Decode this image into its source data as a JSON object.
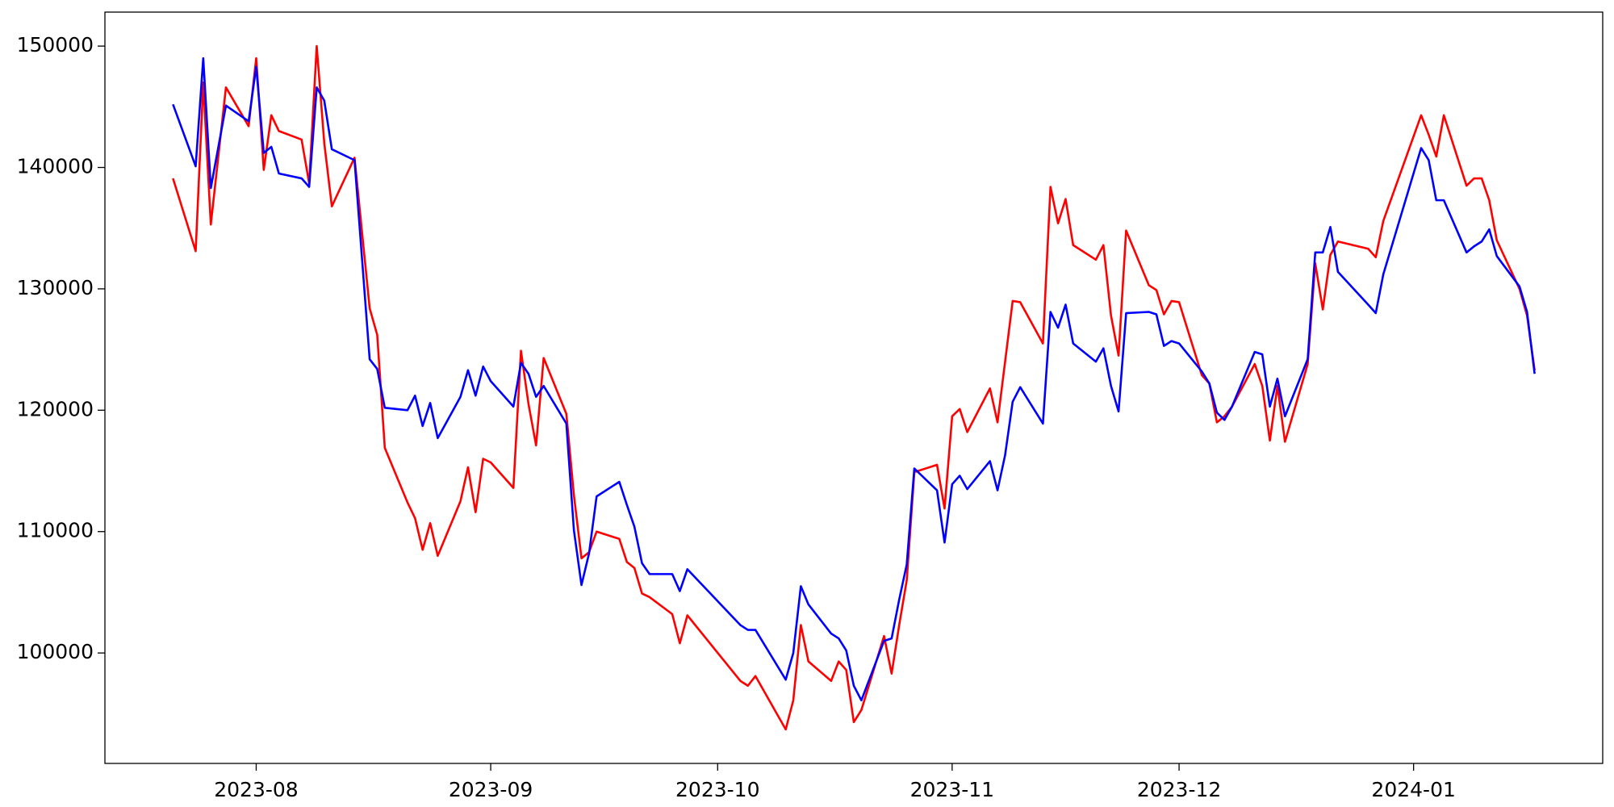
{
  "chart_data": {
    "type": "line",
    "x": [
      19559,
      19562,
      19563,
      19564,
      19566,
      19569,
      19570,
      19571,
      19572,
      19573,
      19576,
      19577,
      19578,
      19579,
      19580,
      19583,
      19585,
      19586,
      19587,
      19590,
      19591,
      19592,
      19593,
      19594,
      19597,
      19598,
      19599,
      19600,
      19601,
      19604,
      19605,
      19606,
      19607,
      19608,
      19611,
      19612,
      19613,
      19614,
      19615,
      19618,
      19619,
      19620,
      19621,
      19622,
      19625,
      19626,
      19627,
      19634,
      19635,
      19636,
      19640,
      19641,
      19642,
      19643,
      19646,
      19647,
      19648,
      19649,
      19650,
      19653,
      19654,
      19655,
      19656,
      19657,
      19660,
      19661,
      19662,
      19663,
      19664,
      19667,
      19668,
      19669,
      19670,
      19671,
      19674,
      19675,
      19676,
      19677,
      19678,
      19681,
      19682,
      19683,
      19684,
      19685,
      19688,
      19689,
      19690,
      19691,
      19692,
      19695,
      19696,
      19697,
      19698,
      19699,
      19702,
      19703,
      19704,
      19705,
      19706,
      19709,
      19710,
      19711,
      19712,
      19713,
      19717,
      19718,
      19719,
      19724,
      19725,
      19726,
      19727,
      19730,
      19731,
      19732,
      19733,
      19734,
      19737,
      19738,
      19739
    ],
    "series": [
      {
        "color": "#ff0000",
        "values": [
          139100,
          133100,
          147000,
          135300,
          146600,
          143400,
          149000,
          139800,
          144300,
          143000,
          142300,
          138700,
          150000,
          142000,
          136800,
          140800,
          128400,
          126200,
          116900,
          112400,
          111100,
          108500,
          110700,
          108000,
          112500,
          115300,
          111600,
          116000,
          115700,
          113600,
          124900,
          120500,
          117100,
          124300,
          119700,
          113000,
          107800,
          108300,
          110000,
          109400,
          107500,
          107000,
          104900,
          104600,
          103200,
          100800,
          103100,
          97700,
          97300,
          98100,
          93700,
          96100,
          102300,
          99300,
          97700,
          99300,
          98600,
          94300,
          95300,
          101400,
          98300,
          102300,
          106000,
          114900,
          115500,
          111900,
          119500,
          120100,
          118200,
          121800,
          119000,
          124000,
          129000,
          128900,
          125500,
          138400,
          135400,
          137400,
          133600,
          132400,
          133600,
          127800,
          124500,
          134800,
          130300,
          129900,
          127900,
          129000,
          128900,
          122900,
          122200,
          119000,
          119500,
          120300,
          123800,
          122000,
          117500,
          122000,
          117400,
          123800,
          132100,
          128300,
          132800,
          133900,
          133300,
          132600,
          135600,
          144300,
          142700,
          140900,
          144300,
          138500,
          139100,
          139100,
          137300,
          134000,
          130000,
          127800,
          123300
        ]
      },
      {
        "color": "#0000ff",
        "values": [
          145200,
          140100,
          149000,
          138300,
          145100,
          143800,
          148300,
          141200,
          141700,
          139500,
          139100,
          138400,
          146600,
          145500,
          141500,
          140600,
          124200,
          123400,
          120200,
          120000,
          121200,
          118700,
          120600,
          117700,
          121100,
          123300,
          121200,
          123600,
          122400,
          120300,
          123900,
          123000,
          121100,
          122000,
          118900,
          110100,
          105600,
          108200,
          112900,
          114100,
          112200,
          110400,
          107400,
          106500,
          106500,
          105100,
          106900,
          102300,
          101900,
          101900,
          97800,
          100000,
          105500,
          104000,
          101600,
          101200,
          100200,
          97300,
          96100,
          101000,
          101200,
          104400,
          107300,
          115200,
          113400,
          109100,
          113900,
          114600,
          113500,
          115800,
          113400,
          116300,
          120700,
          121900,
          118900,
          128100,
          126800,
          128700,
          125500,
          124000,
          125100,
          122000,
          119900,
          128000,
          128100,
          127900,
          125300,
          125700,
          125500,
          123200,
          122200,
          119800,
          119200,
          120300,
          124800,
          124600,
          120300,
          122600,
          119500,
          124200,
          133000,
          133000,
          135100,
          131400,
          128700,
          128000,
          131200,
          141600,
          140600,
          137300,
          137300,
          133000,
          133500,
          133900,
          134900,
          132700,
          130200,
          128100,
          123000
        ]
      }
    ],
    "xlim": [
      19550,
      19748
    ],
    "xticks": [
      {
        "value": 19570,
        "label": "2023-08"
      },
      {
        "value": 19601,
        "label": "2023-09"
      },
      {
        "value": 19631,
        "label": "2023-10"
      },
      {
        "value": 19662,
        "label": "2023-11"
      },
      {
        "value": 19692,
        "label": "2023-12"
      },
      {
        "value": 19723,
        "label": "2024-01"
      }
    ],
    "ylim": [
      90900,
      152800
    ],
    "yticks": [
      100000,
      110000,
      120000,
      130000,
      140000,
      150000
    ],
    "grid": false
  }
}
